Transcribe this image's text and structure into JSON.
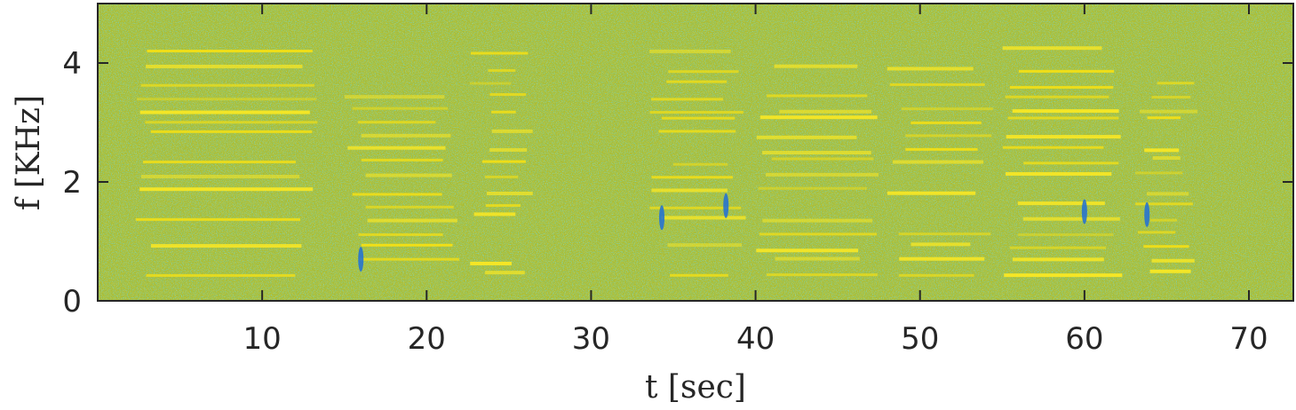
{
  "chart_data": {
    "type": "heatmap",
    "title": "",
    "xlabel": "t [sec]",
    "ylabel": "f [KHz]",
    "xlim": [
      0,
      72.7
    ],
    "ylim": [
      0,
      5
    ],
    "xticks": [
      10,
      20,
      30,
      40,
      50,
      60,
      70
    ],
    "xtick_labels": [
      "10",
      "20",
      "30",
      "40",
      "50",
      "60",
      "70"
    ],
    "yticks": [
      0,
      2,
      4
    ],
    "ytick_labels": [
      "0",
      "2",
      "4"
    ],
    "grid": false,
    "legend": "none",
    "colormap": {
      "background": "#aabd35",
      "low": "#2aa98e",
      "high": "#f4e014",
      "peak": "#fae823",
      "dip": "#1f6fd8"
    },
    "harmonic_bands_khz": [
      0.45,
      0.65,
      0.9,
      1.15,
      1.4,
      1.6,
      1.85,
      2.1,
      2.35,
      2.55,
      2.8,
      3.05,
      3.2,
      3.45,
      3.65,
      3.9,
      4.2
    ],
    "phrase_segments_sec": [
      {
        "start": 2.0,
        "end": 13.5
      },
      {
        "start": 15.0,
        "end": 22.0
      },
      {
        "start": 22.5,
        "end": 26.5
      },
      {
        "start": 33.5,
        "end": 39.5
      },
      {
        "start": 40.0,
        "end": 47.5
      },
      {
        "start": 48.0,
        "end": 54.5
      },
      {
        "start": 55.0,
        "end": 62.5
      },
      {
        "start": 63.0,
        "end": 67.0
      }
    ],
    "low_energy_marks": [
      {
        "t": 16.0,
        "f_khz": 0.7
      },
      {
        "t": 34.3,
        "f_khz": 1.4
      },
      {
        "t": 38.2,
        "f_khz": 1.6
      },
      {
        "t": 60.0,
        "f_khz": 1.5
      },
      {
        "t": 63.8,
        "f_khz": 1.45
      }
    ]
  }
}
